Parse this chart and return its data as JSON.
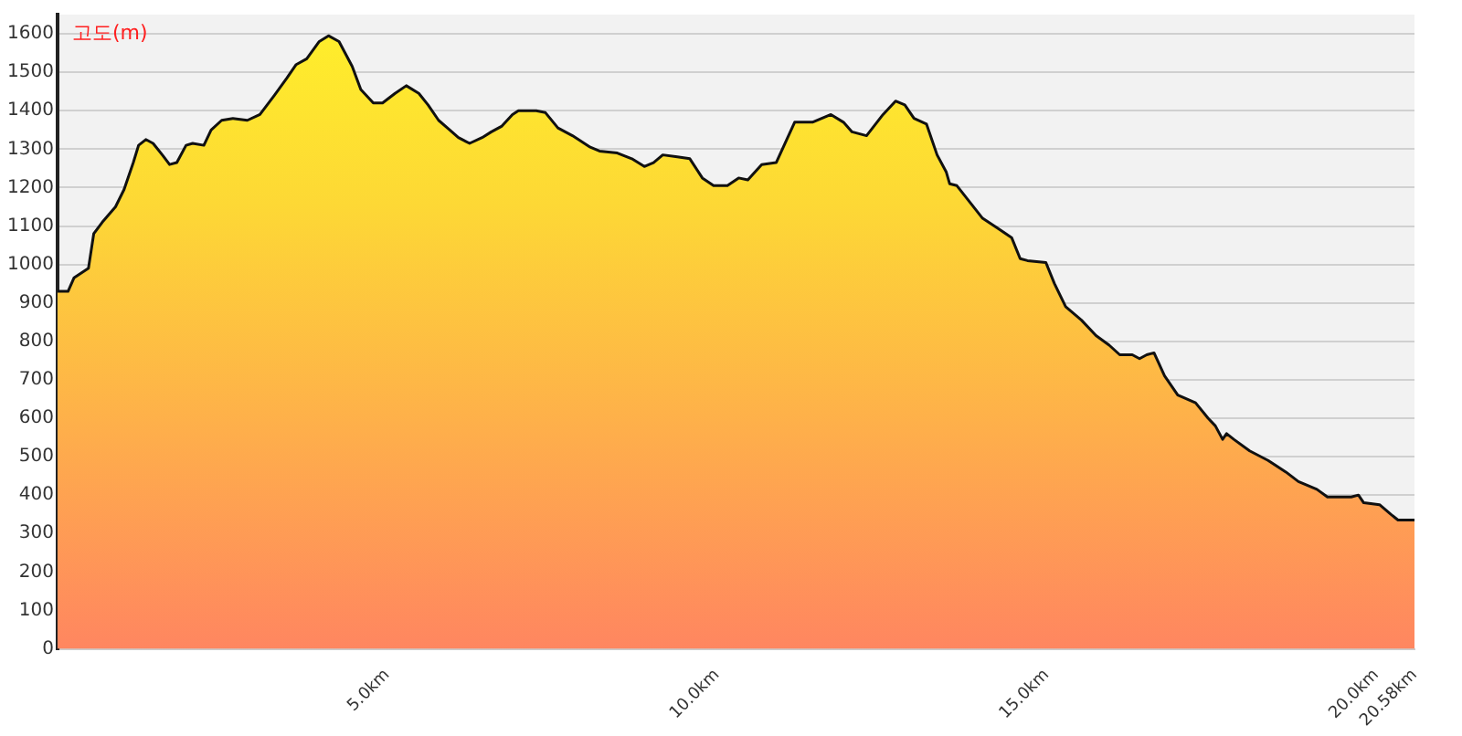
{
  "chart_data": {
    "type": "area",
    "ylabel": "고도(m)",
    "x": [
      0,
      0.16,
      0.25,
      0.47,
      0.55,
      0.68,
      0.88,
      1.01,
      1.15,
      1.23,
      1.34,
      1.45,
      1.59,
      1.7,
      1.81,
      1.95,
      2.05,
      2.22,
      2.33,
      2.49,
      2.66,
      2.88,
      3.07,
      3.29,
      3.48,
      3.62,
      3.78,
      3.97,
      4.11,
      4.27,
      4.47,
      4.6,
      4.79,
      4.93,
      5.12,
      5.29,
      5.48,
      5.62,
      5.78,
      5.95,
      6.08,
      6.25,
      6.44,
      6.58,
      6.74,
      6.9,
      6.99,
      7.26,
      7.4,
      7.59,
      7.81,
      8.08,
      8.22,
      8.49,
      8.71,
      8.9,
      9.04,
      9.18,
      9.4,
      9.59,
      9.78,
      9.95,
      10.16,
      10.33,
      10.47,
      10.68,
      10.9,
      11.18,
      11.45,
      11.73,
      11.92,
      12.05,
      12.27,
      12.52,
      12.71,
      12.85,
      12.99,
      13.18,
      13.34,
      13.48,
      13.53,
      13.64,
      14.03,
      14.25,
      14.47,
      14.6,
      14.71,
      14.99,
      15.12,
      15.29,
      15.53,
      15.75,
      15.95,
      16.11,
      16.3,
      16.41,
      16.52,
      16.63,
      16.79,
      16.99,
      17.26,
      17.45,
      17.56,
      17.67,
      17.73,
      17.84,
      18.08,
      18.36,
      18.63,
      18.82,
      19.1,
      19.26,
      19.62,
      19.73,
      19.81,
      20.05,
      20.22,
      20.33,
      20.58
    ],
    "series": [
      {
        "color": "#fdd835",
        "values": [
          930,
          930,
          965,
          990,
          1080,
          1110,
          1150,
          1195,
          1265,
          1310,
          1325,
          1315,
          1285,
          1260,
          1265,
          1310,
          1315,
          1310,
          1350,
          1375,
          1380,
          1375,
          1390,
          1440,
          1485,
          1520,
          1535,
          1580,
          1595,
          1580,
          1515,
          1455,
          1420,
          1420,
          1445,
          1465,
          1445,
          1415,
          1375,
          1350,
          1330,
          1315,
          1330,
          1345,
          1360,
          1390,
          1400,
          1400,
          1395,
          1355,
          1335,
          1305,
          1295,
          1290,
          1275,
          1255,
          1265,
          1285,
          1280,
          1275,
          1225,
          1205,
          1205,
          1225,
          1220,
          1260,
          1265,
          1370,
          1370,
          1390,
          1370,
          1345,
          1335,
          1390,
          1425,
          1415,
          1380,
          1365,
          1285,
          1240,
          1210,
          1205,
          1120,
          1095,
          1070,
          1015,
          1010,
          1005,
          950,
          890,
          855,
          815,
          790,
          765,
          765,
          755,
          765,
          770,
          710,
          660,
          640,
          600,
          580,
          545,
          560,
          545,
          515,
          490,
          460,
          435,
          415,
          395,
          395,
          400,
          380,
          375,
          350,
          335,
          335
        ]
      }
    ],
    "xlim": [
      0,
      20.58
    ],
    "xticks": [
      {
        "value": 5,
        "label": "5.0km"
      },
      {
        "value": 10,
        "label": "10.0km"
      },
      {
        "value": 15,
        "label": "15.0km"
      },
      {
        "value": 20,
        "label": "20.0km"
      },
      {
        "value": 20.58,
        "label": "20.58km"
      }
    ],
    "ylim": [
      0,
      1650
    ],
    "yticks": [
      0,
      100,
      200,
      300,
      400,
      500,
      600,
      700,
      800,
      900,
      1000,
      1100,
      1200,
      1300,
      1400,
      1500,
      1600
    ],
    "grid": "y",
    "legend": false,
    "marker": "none",
    "line_style": "solid"
  }
}
